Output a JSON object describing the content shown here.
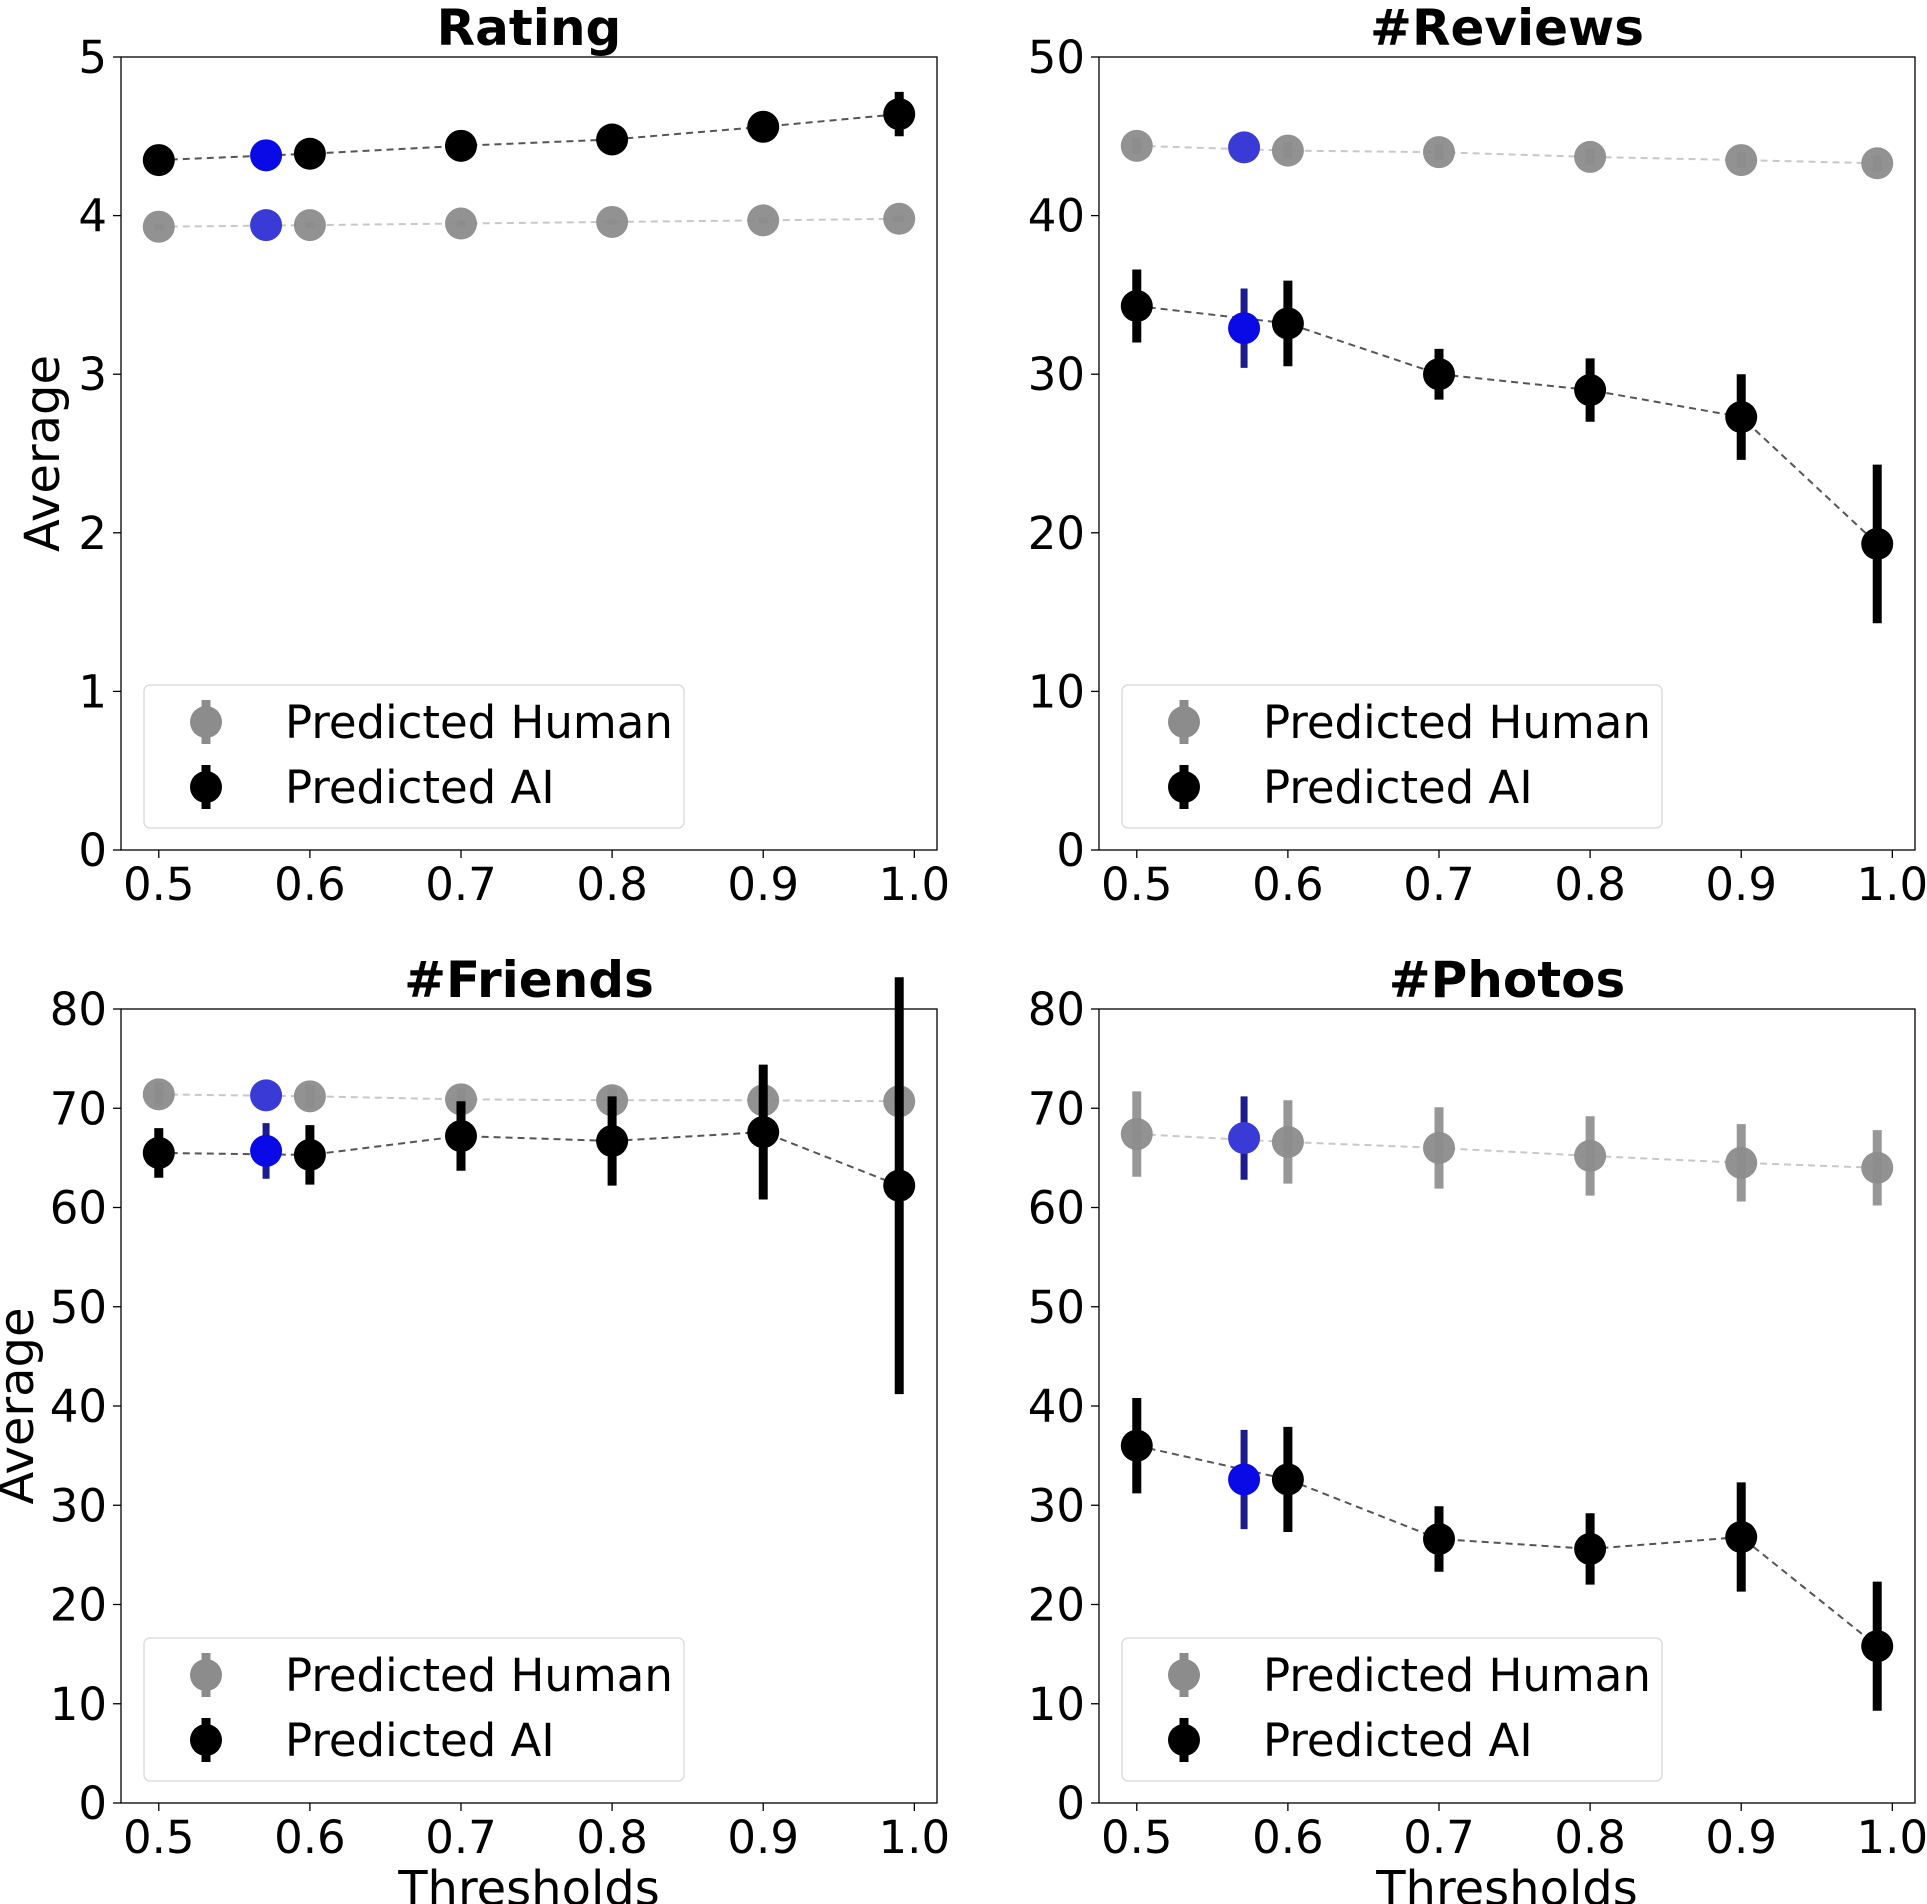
{
  "chart_data": [
    {
      "type": "scatter",
      "title": "Rating",
      "xlabel": "",
      "ylabel": "Average",
      "xlim": [
        0.475,
        1.015
      ],
      "ylim": [
        0,
        5
      ],
      "xticks": [
        "0.5",
        "0.6",
        "0.7",
        "0.8",
        "0.9",
        "1.0"
      ],
      "yticks": [
        "0",
        "1",
        "2",
        "3",
        "4",
        "5"
      ],
      "legend": "lower-left",
      "grid": false,
      "series": [
        {
          "name": "Predicted Human",
          "color": "#8c8c8c",
          "x": [
            0.5,
            0.6,
            0.7,
            0.8,
            0.9,
            0.99
          ],
          "y": [
            3.93,
            3.94,
            3.95,
            3.96,
            3.97,
            3.98
          ],
          "err": [
            0.02,
            0.02,
            0.02,
            0.02,
            0.02,
            0.02
          ]
        },
        {
          "name": "Predicted AI",
          "color": "#000000",
          "x": [
            0.5,
            0.6,
            0.7,
            0.8,
            0.9,
            0.99
          ],
          "y": [
            4.35,
            4.39,
            4.44,
            4.48,
            4.56,
            4.64
          ],
          "err": [
            0.03,
            0.03,
            0.04,
            0.05,
            0.07,
            0.14
          ]
        }
      ],
      "highlight": [
        {
          "x": 0.571,
          "y": 4.38,
          "err": 0.03,
          "color": "#0a0ae6"
        },
        {
          "x": 0.571,
          "y": 3.94,
          "err": 0.02,
          "color": "#3a3ad6"
        }
      ]
    },
    {
      "type": "scatter",
      "title": "#Reviews",
      "xlabel": "",
      "ylabel": "",
      "xlim": [
        0.475,
        1.015
      ],
      "ylim": [
        0,
        50
      ],
      "xticks": [
        "0.5",
        "0.6",
        "0.7",
        "0.8",
        "0.9",
        "1.0"
      ],
      "yticks": [
        "0",
        "10",
        "20",
        "30",
        "40",
        "50"
      ],
      "legend": "lower-left",
      "grid": false,
      "series": [
        {
          "name": "Predicted Human",
          "color": "#8c8c8c",
          "x": [
            0.5,
            0.6,
            0.7,
            0.8,
            0.9,
            0.99
          ],
          "y": [
            44.4,
            44.1,
            44.0,
            43.7,
            43.5,
            43.3
          ],
          "err": [
            0.5,
            0.5,
            0.5,
            0.5,
            0.5,
            0.5
          ]
        },
        {
          "name": "Predicted AI",
          "color": "#000000",
          "x": [
            0.5,
            0.6,
            0.7,
            0.8,
            0.9,
            0.99
          ],
          "y": [
            34.3,
            33.2,
            30.0,
            29.0,
            27.3,
            19.3
          ],
          "err": [
            2.3,
            2.7,
            1.6,
            2.0,
            2.7,
            5.0
          ]
        }
      ],
      "highlight": [
        {
          "x": 0.571,
          "y": 44.3,
          "err": 0.5,
          "color": "#3a3ad6"
        },
        {
          "x": 0.571,
          "y": 32.9,
          "err": 2.5,
          "color": "#0a0ae6"
        }
      ]
    },
    {
      "type": "scatter",
      "title": "#Friends",
      "xlabel": "Thresholds",
      "ylabel": "Average",
      "xlim": [
        0.475,
        1.015
      ],
      "ylim": [
        0,
        80
      ],
      "xticks": [
        "0.5",
        "0.6",
        "0.7",
        "0.8",
        "0.9",
        "1.0"
      ],
      "yticks": [
        "0",
        "10",
        "20",
        "30",
        "40",
        "50",
        "60",
        "70",
        "80"
      ],
      "legend": "lower-left",
      "grid": false,
      "series": [
        {
          "name": "Predicted Human",
          "color": "#8c8c8c",
          "x": [
            0.5,
            0.6,
            0.7,
            0.8,
            0.9,
            0.99
          ],
          "y": [
            71.4,
            71.2,
            70.9,
            70.8,
            70.8,
            70.7
          ],
          "err": [
            1.2,
            1.2,
            1.2,
            1.3,
            1.3,
            1.3
          ]
        },
        {
          "name": "Predicted AI",
          "color": "#000000",
          "x": [
            0.5,
            0.6,
            0.7,
            0.8,
            0.9,
            0.99
          ],
          "y": [
            65.5,
            65.3,
            67.2,
            66.7,
            67.6,
            62.2
          ],
          "err": [
            2.5,
            3.0,
            3.5,
            4.5,
            6.8,
            21.0
          ]
        }
      ],
      "highlight": [
        {
          "x": 0.571,
          "y": 71.3,
          "err": 1.2,
          "color": "#3a3ad6"
        },
        {
          "x": 0.571,
          "y": 65.7,
          "err": 2.8,
          "color": "#0a0ae6"
        }
      ]
    },
    {
      "type": "scatter",
      "title": "#Photos",
      "xlabel": "Thresholds",
      "ylabel": "",
      "xlim": [
        0.475,
        1.015
      ],
      "ylim": [
        0,
        80
      ],
      "xticks": [
        "0.5",
        "0.6",
        "0.7",
        "0.8",
        "0.9",
        "1.0"
      ],
      "yticks": [
        "0",
        "10",
        "20",
        "30",
        "40",
        "50",
        "60",
        "70",
        "80"
      ],
      "legend": "lower-left",
      "grid": false,
      "series": [
        {
          "name": "Predicted Human",
          "color": "#8c8c8c",
          "x": [
            0.5,
            0.6,
            0.7,
            0.8,
            0.9,
            0.99
          ],
          "y": [
            67.4,
            66.6,
            66.0,
            65.2,
            64.5,
            64.0
          ],
          "err": [
            4.3,
            4.2,
            4.1,
            4.0,
            3.9,
            3.8
          ]
        },
        {
          "name": "Predicted AI",
          "color": "#000000",
          "x": [
            0.5,
            0.6,
            0.7,
            0.8,
            0.9,
            0.99
          ],
          "y": [
            36.0,
            32.6,
            26.6,
            25.6,
            26.8,
            15.8
          ],
          "err": [
            4.8,
            5.3,
            3.3,
            3.6,
            5.5,
            6.5
          ]
        }
      ],
      "highlight": [
        {
          "x": 0.571,
          "y": 67.0,
          "err": 4.2,
          "color": "#3a3ad6"
        },
        {
          "x": 0.571,
          "y": 32.6,
          "err": 5.0,
          "color": "#0a0ae6"
        }
      ]
    }
  ]
}
